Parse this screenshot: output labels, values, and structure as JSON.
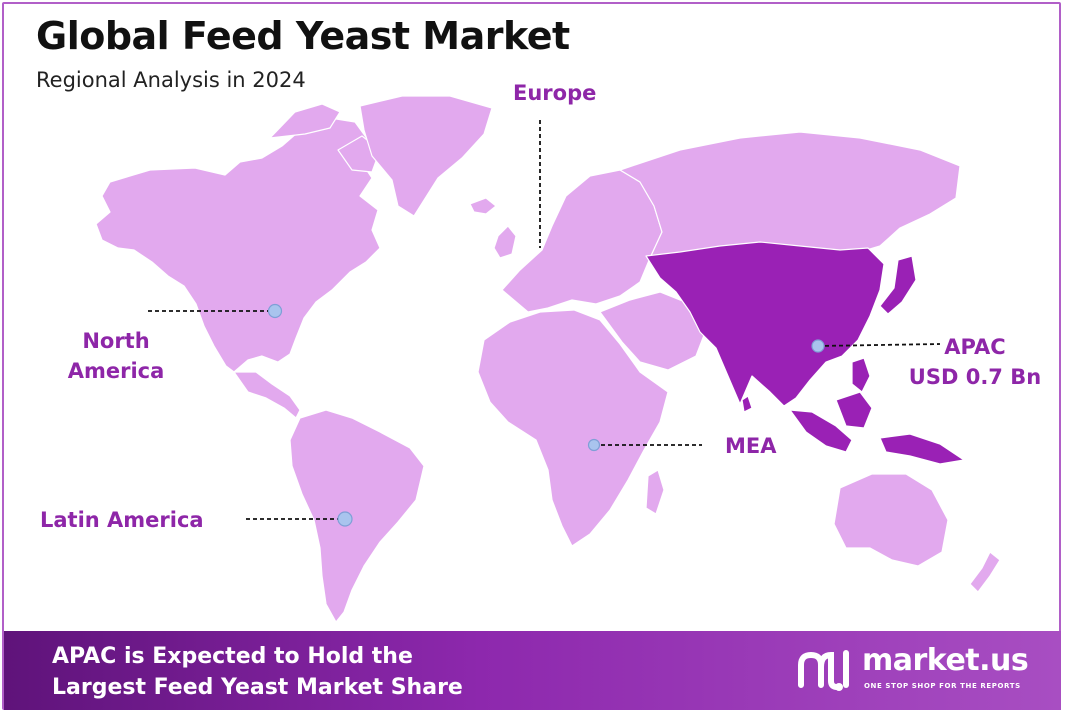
{
  "header": {
    "title": "Global Feed Yeast Market",
    "subtitle": "Regional Analysis in 2024"
  },
  "regions": {
    "europe": "Europe",
    "north_america_line1": "North",
    "north_america_line2": "America",
    "apac_line1": "APAC",
    "apac_line2": "USD 0.7 Bn",
    "mea": "MEA",
    "latin_america": "Latin America"
  },
  "highlight_region": "APAC",
  "colors": {
    "land": "#e2a9ee",
    "highlight": "#9a21b5",
    "label": "#8e26a8",
    "marker": "#a9c4ee",
    "footer_start": "#5f137a",
    "footer_end": "#a84ec2"
  },
  "footer": {
    "line1": "APAC is Expected to Hold the",
    "line2": "Largest Feed Yeast Market Share"
  },
  "brand": {
    "name": "market.us",
    "tagline": "ONE STOP SHOP FOR THE REPORTS",
    "icon": "market-us-logo-icon"
  }
}
